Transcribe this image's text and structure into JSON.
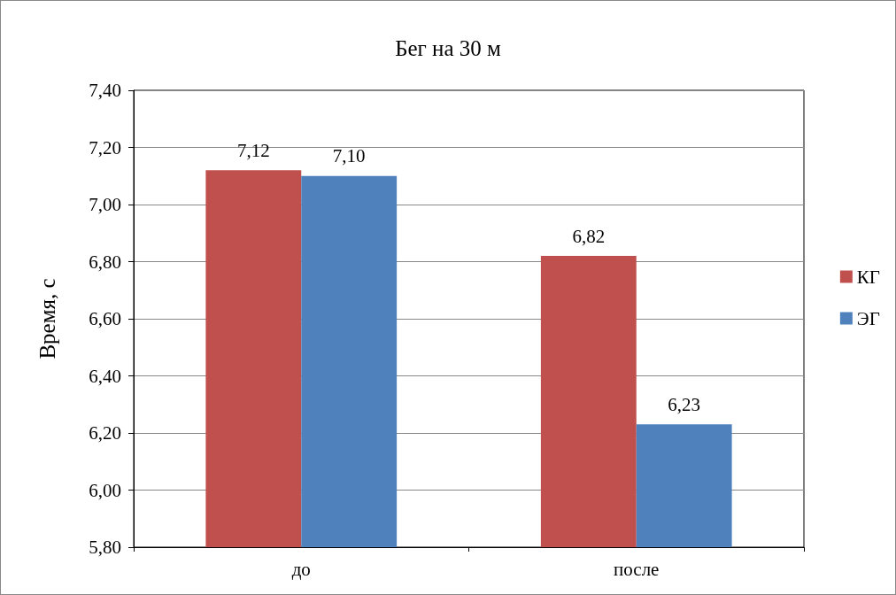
{
  "chart_data": {
    "type": "bar",
    "title": "Бег на 30 м",
    "ylabel": "Время, с",
    "categories": [
      "до",
      "после"
    ],
    "series": [
      {
        "name": "КГ",
        "color": "#c0504d",
        "values": [
          7.12,
          6.82
        ],
        "value_labels": [
          "7,12",
          "6,82"
        ]
      },
      {
        "name": "ЭГ",
        "color": "#4f81bd",
        "values": [
          7.1,
          6.23
        ],
        "value_labels": [
          "7,10",
          "6,23"
        ]
      }
    ],
    "ylim": [
      5.8,
      7.4
    ],
    "yticks": [
      {
        "value": 5.8,
        "label": "5,80"
      },
      {
        "value": 6.0,
        "label": "6,00"
      },
      {
        "value": 6.2,
        "label": "6,20"
      },
      {
        "value": 6.4,
        "label": "6,40"
      },
      {
        "value": 6.6,
        "label": "6,60"
      },
      {
        "value": 6.8,
        "label": "6,80"
      },
      {
        "value": 7.0,
        "label": "7,00"
      },
      {
        "value": 7.2,
        "label": "7,20"
      },
      {
        "value": 7.4,
        "label": "7,40"
      }
    ],
    "grid": "y",
    "legend": "right"
  }
}
